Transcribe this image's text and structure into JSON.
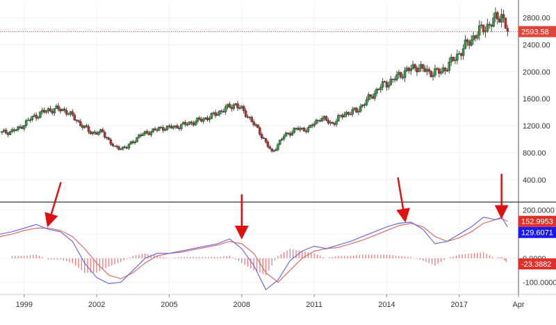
{
  "chart_data": [
    {
      "type": "candlestick",
      "panel": "price",
      "x_labels": [
        "1999",
        "2002",
        "2005",
        "2008",
        "2011",
        "2014",
        "2017",
        "Apr"
      ],
      "y_ticks": [
        400,
        800,
        1200,
        1600,
        2000,
        2400,
        2800
      ],
      "y_tick_labels": [
        "400.00",
        "800.00",
        "1200.00",
        "1600.00",
        "2000.00",
        "2400.00",
        "2800.00"
      ],
      "ylim": [
        80,
        3000
      ],
      "price_line": {
        "value": 2593.58,
        "label": "2593.58",
        "color": "#e0453a"
      },
      "grid": true,
      "colors": {
        "up": "#2e9e3a",
        "down": "#c03030",
        "wick": "#444444"
      },
      "series": [
        {
          "points": [
            [
              1998.25,
              1100
            ],
            [
              1998.75,
              1150
            ],
            [
              1999.25,
              1300
            ],
            [
              1999.75,
              1400
            ],
            [
              2000.25,
              1450
            ],
            [
              2000.75,
              1420
            ],
            [
              2001.25,
              1250
            ],
            [
              2001.75,
              1100
            ],
            [
              2002.25,
              1100
            ],
            [
              2002.75,
              870
            ],
            [
              2003.25,
              880
            ],
            [
              2003.75,
              1050
            ],
            [
              2004.25,
              1120
            ],
            [
              2004.75,
              1170
            ],
            [
              2005.25,
              1180
            ],
            [
              2005.75,
              1230
            ],
            [
              2006.25,
              1280
            ],
            [
              2006.75,
              1340
            ],
            [
              2007.25,
              1440
            ],
            [
              2007.75,
              1520
            ],
            [
              2008.25,
              1350
            ],
            [
              2008.75,
              1100
            ],
            [
              2009.25,
              800
            ],
            [
              2009.75,
              1050
            ],
            [
              2010.25,
              1150
            ],
            [
              2010.75,
              1150
            ],
            [
              2011.25,
              1320
            ],
            [
              2011.75,
              1230
            ],
            [
              2012.25,
              1380
            ],
            [
              2012.75,
              1420
            ],
            [
              2013.25,
              1600
            ],
            [
              2013.75,
              1780
            ],
            [
              2014.25,
              1880
            ],
            [
              2014.75,
              2000
            ],
            [
              2015.25,
              2080
            ],
            [
              2015.75,
              1990
            ],
            [
              2016.25,
              2000
            ],
            [
              2016.75,
              2170
            ],
            [
              2017.25,
              2380
            ],
            [
              2017.75,
              2580
            ],
            [
              2018.25,
              2700
            ],
            [
              2018.75,
              2850
            ],
            [
              2019.0,
              2593.58
            ]
          ]
        }
      ]
    },
    {
      "type": "line",
      "panel": "oscillator",
      "y_ticks": [
        -100,
        0,
        100,
        200
      ],
      "y_tick_labels": [
        "-100.0000",
        "0.0000",
        "100.0000",
        "200.0000"
      ],
      "ylim": [
        -150,
        230
      ],
      "grid": true,
      "series": [
        {
          "name": "",
          "color": "#6a6ae0",
          "badge": {
            "value": 129.6071,
            "label": "129.6071",
            "color": "#1a1aee"
          },
          "points": [
            [
              1998.0,
              100
            ],
            [
              1998.5,
              110
            ],
            [
              1999.0,
              125
            ],
            [
              1999.5,
              140
            ],
            [
              2000.0,
              120
            ],
            [
              2000.5,
              110
            ],
            [
              2001.0,
              70
            ],
            [
              2001.5,
              -20
            ],
            [
              2002.0,
              -80
            ],
            [
              2002.5,
              -105
            ],
            [
              2003.0,
              -100
            ],
            [
              2003.5,
              -50
            ],
            [
              2004.0,
              0
            ],
            [
              2004.5,
              20
            ],
            [
              2005.0,
              20
            ],
            [
              2005.5,
              30
            ],
            [
              2006.0,
              40
            ],
            [
              2006.5,
              50
            ],
            [
              2007.0,
              60
            ],
            [
              2007.5,
              80
            ],
            [
              2008.0,
              40
            ],
            [
              2008.5,
              -30
            ],
            [
              2009.0,
              -130
            ],
            [
              2009.5,
              -90
            ],
            [
              2010.0,
              -10
            ],
            [
              2010.5,
              30
            ],
            [
              2011.0,
              50
            ],
            [
              2011.5,
              40
            ],
            [
              2012.0,
              55
            ],
            [
              2012.5,
              70
            ],
            [
              2013.0,
              90
            ],
            [
              2013.5,
              110
            ],
            [
              2014.0,
              130
            ],
            [
              2014.5,
              145
            ],
            [
              2015.0,
              150
            ],
            [
              2015.5,
              120
            ],
            [
              2016.0,
              60
            ],
            [
              2016.5,
              70
            ],
            [
              2017.0,
              100
            ],
            [
              2017.5,
              130
            ],
            [
              2018.0,
              170
            ],
            [
              2018.5,
              160
            ],
            [
              2018.75,
              170
            ],
            [
              2019.0,
              129.6071
            ]
          ]
        },
        {
          "name": "",
          "color": "#e06a6a",
          "badge": {
            "value": 152.9953,
            "label": "152.9953",
            "color": "#e0302a"
          },
          "points": [
            [
              1998.0,
              90
            ],
            [
              1998.5,
              100
            ],
            [
              1999.0,
              115
            ],
            [
              1999.5,
              125
            ],
            [
              2000.0,
              125
            ],
            [
              2000.5,
              115
            ],
            [
              2001.0,
              90
            ],
            [
              2001.5,
              40
            ],
            [
              2002.0,
              -20
            ],
            [
              2002.5,
              -70
            ],
            [
              2003.0,
              -85
            ],
            [
              2003.5,
              -60
            ],
            [
              2004.0,
              -20
            ],
            [
              2004.5,
              10
            ],
            [
              2005.0,
              20
            ],
            [
              2005.5,
              25
            ],
            [
              2006.0,
              35
            ],
            [
              2006.5,
              45
            ],
            [
              2007.0,
              55
            ],
            [
              2007.5,
              70
            ],
            [
              2008.0,
              60
            ],
            [
              2008.5,
              20
            ],
            [
              2009.0,
              -60
            ],
            [
              2009.5,
              -100
            ],
            [
              2010.0,
              -50
            ],
            [
              2010.5,
              0
            ],
            [
              2011.0,
              30
            ],
            [
              2011.5,
              40
            ],
            [
              2012.0,
              45
            ],
            [
              2012.5,
              60
            ],
            [
              2013.0,
              75
            ],
            [
              2013.5,
              95
            ],
            [
              2014.0,
              115
            ],
            [
              2014.5,
              135
            ],
            [
              2015.0,
              145
            ],
            [
              2015.5,
              130
            ],
            [
              2016.0,
              90
            ],
            [
              2016.5,
              70
            ],
            [
              2017.0,
              85
            ],
            [
              2017.5,
              110
            ],
            [
              2018.0,
              145
            ],
            [
              2018.5,
              160
            ],
            [
              2018.75,
              165
            ],
            [
              2019.0,
              152.9953
            ]
          ]
        },
        {
          "name": "",
          "type": "bar",
          "color": "#f08080",
          "badge": {
            "value": -23.3882,
            "label": "-23.3882",
            "color": "#e0302a"
          },
          "points": [
            [
              1998.5,
              10
            ],
            [
              1999.0,
              10
            ],
            [
              1999.5,
              15
            ],
            [
              2000.0,
              -5
            ],
            [
              2000.5,
              -5
            ],
            [
              2001.0,
              -20
            ],
            [
              2001.5,
              -60
            ],
            [
              2002.0,
              -60
            ],
            [
              2002.5,
              -35
            ],
            [
              2003.0,
              -15
            ],
            [
              2003.5,
              10
            ],
            [
              2004.0,
              20
            ],
            [
              2004.5,
              10
            ],
            [
              2005.0,
              0
            ],
            [
              2005.5,
              5
            ],
            [
              2006.0,
              5
            ],
            [
              2006.5,
              5
            ],
            [
              2007.0,
              5
            ],
            [
              2007.5,
              10
            ],
            [
              2008.0,
              -20
            ],
            [
              2008.5,
              -50
            ],
            [
              2009.0,
              -70
            ],
            [
              2009.5,
              10
            ],
            [
              2010.0,
              40
            ],
            [
              2010.5,
              30
            ],
            [
              2011.0,
              20
            ],
            [
              2011.5,
              0
            ],
            [
              2012.0,
              10
            ],
            [
              2012.5,
              10
            ],
            [
              2013.0,
              15
            ],
            [
              2013.5,
              15
            ],
            [
              2014.0,
              15
            ],
            [
              2014.5,
              10
            ],
            [
              2015.0,
              5
            ],
            [
              2015.5,
              -10
            ],
            [
              2016.0,
              -30
            ],
            [
              2016.5,
              0
            ],
            [
              2017.0,
              15
            ],
            [
              2017.5,
              20
            ],
            [
              2018.0,
              25
            ],
            [
              2018.5,
              0
            ],
            [
              2018.75,
              5
            ],
            [
              2019.0,
              -23.3882
            ]
          ]
        }
      ]
    }
  ],
  "annotations": {
    "arrows": [
      {
        "target_x": 2000.0,
        "target_y": 125,
        "color": "#e01010"
      },
      {
        "target_x": 2008.0,
        "target_y": 75,
        "color": "#e01010"
      },
      {
        "target_x": 2014.75,
        "target_y": 145,
        "color": "#e01010"
      },
      {
        "target_x": 2018.75,
        "target_y": 160,
        "color": "#e01010"
      }
    ]
  }
}
